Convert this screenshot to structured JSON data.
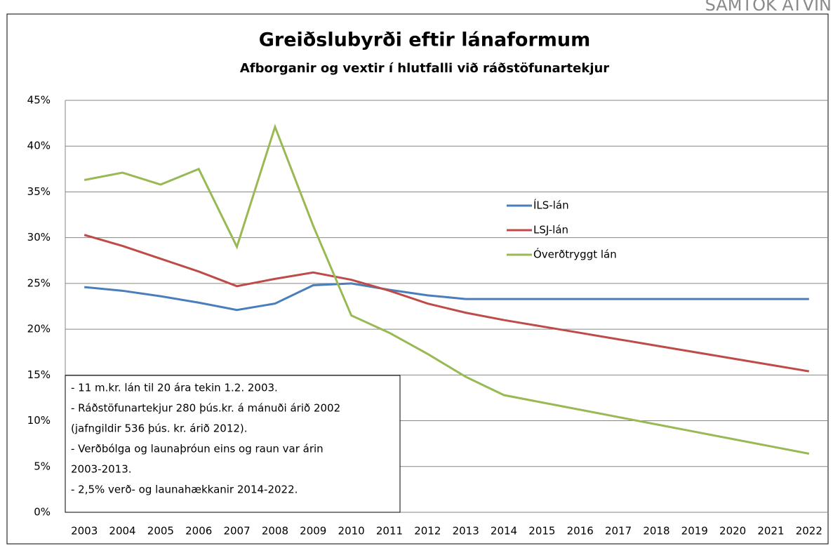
{
  "chart_data": {
    "type": "line",
    "logo": "SAMTÖK ATVIN",
    "title": "Greiðslubyrði eftir lánaformum",
    "subtitle": "Afborganir og vextir í hlutfalli við ráðstöfunartekjur",
    "categories": [
      "2003",
      "2004",
      "2005",
      "2006",
      "2007",
      "2008",
      "2009",
      "2010",
      "2011",
      "2012",
      "2013",
      "2014",
      "2015",
      "2016",
      "2017",
      "2018",
      "2019",
      "2020",
      "2021",
      "2022"
    ],
    "series": [
      {
        "name": "ÍLS-lán",
        "color": "#4a7ebb",
        "values": [
          24.6,
          24.2,
          23.6,
          22.9,
          22.1,
          22.8,
          24.8,
          25.0,
          24.3,
          23.7,
          23.3,
          23.3,
          23.3,
          23.3,
          23.3,
          23.3,
          23.3,
          23.3,
          23.3,
          23.3
        ]
      },
      {
        "name": "LSJ-lán",
        "color": "#be4b48",
        "values": [
          30.3,
          29.1,
          27.7,
          26.3,
          24.7,
          25.5,
          26.2,
          25.4,
          24.2,
          22.8,
          21.8,
          21.0,
          20.3,
          19.6,
          18.9,
          18.2,
          17.5,
          16.8,
          16.1,
          15.4
        ]
      },
      {
        "name": "Óverðtryggt lán",
        "color": "#98b954",
        "values": [
          36.3,
          37.1,
          35.8,
          37.5,
          29.0,
          42.1,
          31.3,
          21.5,
          19.6,
          17.3,
          14.8,
          12.8,
          12.0,
          11.2,
          10.4,
          9.6,
          8.8,
          8.0,
          7.2,
          6.4
        ]
      }
    ],
    "ylim": [
      0,
      45
    ],
    "yticks": [
      {
        "value": 0,
        "label": "0%"
      },
      {
        "value": 5,
        "label": "5%"
      },
      {
        "value": 10,
        "label": "10%"
      },
      {
        "value": 15,
        "label": "15%"
      },
      {
        "value": 20,
        "label": "20%"
      },
      {
        "value": 25,
        "label": "25%"
      },
      {
        "value": 30,
        "label": "30%"
      },
      {
        "value": 35,
        "label": "35%"
      },
      {
        "value": 40,
        "label": "40%"
      },
      {
        "value": 45,
        "label": "45%"
      }
    ],
    "grid": true,
    "annotation": [
      "- 11 m.kr. lán til 20 ára tekin 1.2. 2003.",
      "- Ráðstöfunartekjur 280 þús.kr. á mánuði árið 2002",
      "(jafngildir 536 þús. kr. árið 2012).",
      "- Verðbólga og launaþróun eins og raun var árin",
      "2003-2013.",
      "- 2,5% verð- og launahækkanir 2014-2022."
    ]
  }
}
